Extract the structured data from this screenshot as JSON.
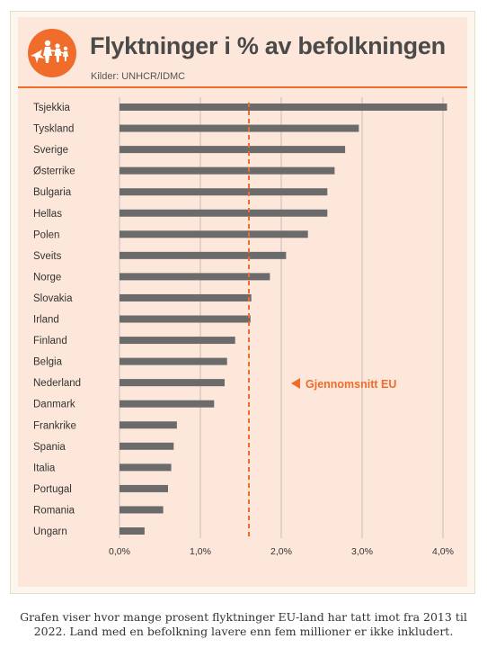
{
  "header": {
    "title": "Flyktninger i % av befolkningen",
    "source": "Kilder: UNHCR/IDMC"
  },
  "caption": "Grafen viser hvor mange prosent flyktninger EU-land har tatt imot fra 2013 til 2022. Land med en befolkning lavere enn fem millioner er ikke inkludert.",
  "colors": {
    "accent": "#ef6c2a",
    "bar": "#6b6b6b",
    "panel": "#fce7da",
    "grid": "#b9b1ab"
  },
  "icons": {
    "logo": "people-escaping-icon"
  },
  "chart_data": {
    "type": "bar",
    "orientation": "horizontal",
    "title": "Flyktninger i % av befolkningen",
    "categories": [
      "Tsjekkia",
      "Tyskland",
      "Sverige",
      "Østerrike",
      "Bulgaria",
      "Hellas",
      "Polen",
      "Sveits",
      "Norge",
      "Slovakia",
      "Irland",
      "Finland",
      "Belgia",
      "Nederland",
      "Danmark",
      "Frankrike",
      "Spania",
      "Italia",
      "Portugal",
      "Romania",
      "Ungarn"
    ],
    "values": [
      4.05,
      2.96,
      2.79,
      2.66,
      2.57,
      2.57,
      2.33,
      2.06,
      1.86,
      1.63,
      1.62,
      1.43,
      1.33,
      1.3,
      1.17,
      0.71,
      0.67,
      0.64,
      0.6,
      0.54,
      0.31
    ],
    "xlim": [
      0,
      4
    ],
    "xticks": [
      0,
      1,
      2,
      3,
      4
    ],
    "xtick_labels": [
      "0,0%",
      "1,0%",
      "2,0%",
      "3,0%",
      "4,0%"
    ],
    "reference_line": {
      "value": 1.6,
      "label": "Gjennomsnitt EU",
      "style": "dashed"
    },
    "grid": "vertical"
  }
}
